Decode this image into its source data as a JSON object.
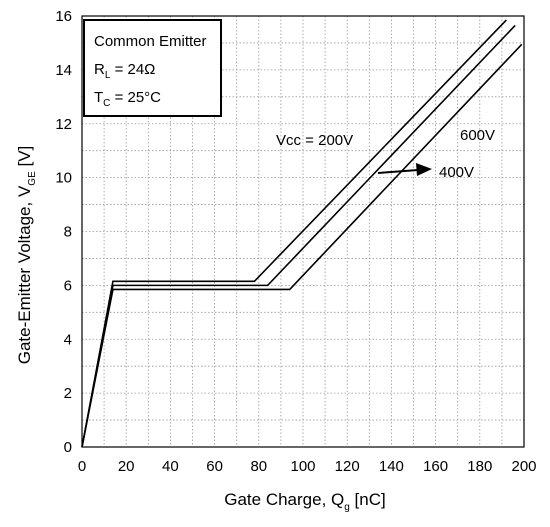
{
  "chart_data": {
    "type": "line",
    "xlabel": {
      "main": "Gate Charge, Q",
      "sub": "g",
      "tail": " [nC]"
    },
    "ylabel": {
      "main": "Gate-Emitter Voltage, V",
      "sub": "GE",
      "tail": " [V]"
    },
    "xlim": [
      0,
      200
    ],
    "ylim": [
      0,
      16
    ],
    "xticks": [
      "0",
      "20",
      "40",
      "60",
      "80",
      "100",
      "120",
      "140",
      "160",
      "180",
      "200"
    ],
    "yticks": [
      "0",
      "2",
      "4",
      "6",
      "8",
      "10",
      "12",
      "14",
      "16"
    ],
    "grid": true,
    "legend": {
      "line1": "Common Emitter",
      "line2_main": "R",
      "line2_sub": "L",
      "line2_tail": " = 24Ω",
      "line3_main": "T",
      "line3_sub": "C",
      "line3_tail": " = 25°C"
    },
    "annotations": {
      "vcc200": "Vcc = 200V",
      "v400": "400V",
      "v600": "600V"
    },
    "series": [
      {
        "label_key": "vcc200",
        "x": [
          0,
          14,
          78,
          192
        ],
        "y": [
          0,
          6.15,
          6.15,
          15.85
        ]
      },
      {
        "label_key": "v400",
        "x": [
          0,
          14,
          84,
          196
        ],
        "y": [
          0,
          6.0,
          6.0,
          15.65
        ]
      },
      {
        "label_key": "v600",
        "x": [
          0,
          14,
          94,
          199
        ],
        "y": [
          0,
          5.85,
          5.85,
          14.95
        ]
      }
    ]
  }
}
